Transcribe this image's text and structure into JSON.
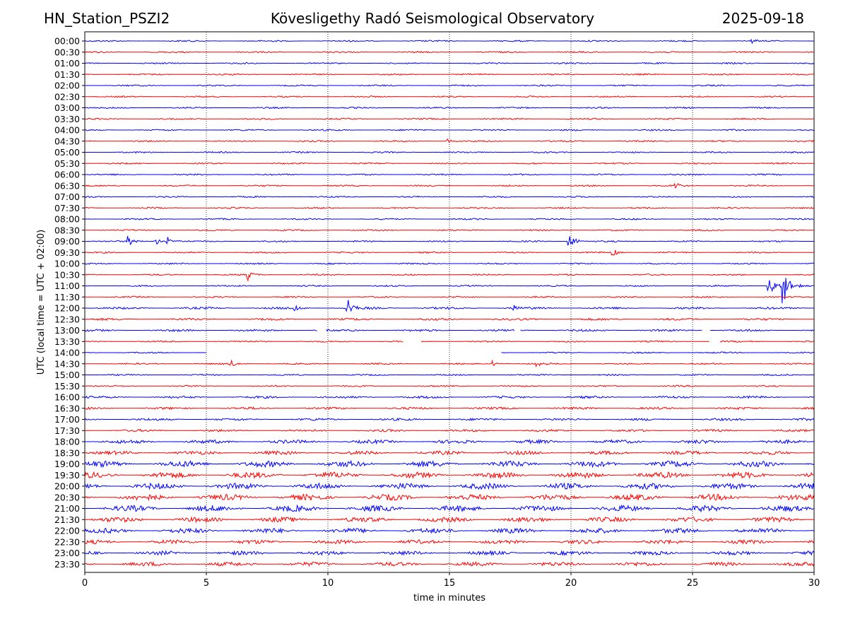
{
  "header": {
    "station": "HN_Station_PSZI2",
    "observatory": "Kövesligethy Radó Seismological Observatory",
    "date": "2025-09-18"
  },
  "chart_data": {
    "type": "line",
    "title": "Kövesligethy Radó Seismological Observatory",
    "xlabel": "time in minutes",
    "ylabel": "UTC (local time = UTC + 02:00)",
    "xlim": [
      0,
      30
    ],
    "x_ticks": [
      0,
      5,
      10,
      15,
      20,
      25,
      30
    ],
    "grid": "vertical dotted lines at 5-minute intervals",
    "colors": {
      "even_rows": "#0000ff",
      "odd_rows": "#ff0000"
    },
    "rows": [
      "00:00",
      "00:30",
      "01:00",
      "01:30",
      "02:00",
      "02:30",
      "03:00",
      "03:30",
      "04:00",
      "04:30",
      "05:00",
      "05:30",
      "06:00",
      "06:30",
      "07:00",
      "07:30",
      "08:00",
      "08:30",
      "09:00",
      "09:30",
      "10:00",
      "10:30",
      "11:00",
      "11:30",
      "12:00",
      "12:30",
      "13:00",
      "13:30",
      "14:00",
      "14:30",
      "15:00",
      "15:30",
      "16:00",
      "16:30",
      "17:00",
      "17:30",
      "18:00",
      "18:30",
      "19:00",
      "19:30",
      "20:00",
      "20:30",
      "21:00",
      "21:30",
      "22:00",
      "22:30",
      "23:00",
      "23:30"
    ],
    "events": [
      {
        "row": "00:00",
        "minute": 27.4,
        "amplitude": 0.3
      },
      {
        "row": "04:30",
        "minute": 14.9,
        "amplitude": 0.25
      },
      {
        "row": "06:30",
        "minute": 24.3,
        "amplitude": 0.35
      },
      {
        "row": "09:00",
        "minute": 1.8,
        "amplitude": 0.55
      },
      {
        "row": "09:00",
        "minute": 2.9,
        "amplitude": 0.4
      },
      {
        "row": "09:00",
        "minute": 3.4,
        "amplitude": 0.45
      },
      {
        "row": "09:00",
        "minute": 19.9,
        "amplitude": 0.9
      },
      {
        "row": "09:30",
        "minute": 21.7,
        "amplitude": 0.4
      },
      {
        "row": "10:30",
        "minute": 6.7,
        "amplitude": 0.6
      },
      {
        "row": "11:00",
        "minute": 28.1,
        "amplitude": 1.4
      },
      {
        "row": "11:00",
        "minute": 28.7,
        "amplitude": 2.2
      },
      {
        "row": "12:00",
        "minute": 10.8,
        "amplitude": 1.1
      },
      {
        "row": "12:00",
        "minute": 8.6,
        "amplitude": 0.45
      },
      {
        "row": "12:00",
        "minute": 17.6,
        "amplitude": 0.4
      },
      {
        "row": "14:30",
        "minute": 6.0,
        "amplitude": 0.4
      },
      {
        "row": "14:30",
        "minute": 16.8,
        "amplitude": 0.3
      },
      {
        "row": "14:30",
        "minute": 18.6,
        "amplitude": 0.35
      }
    ],
    "gaps": [
      {
        "row": "13:00",
        "from": 9.6,
        "to": 9.9
      },
      {
        "row": "13:00",
        "from": 17.7,
        "to": 17.9
      },
      {
        "row": "13:00",
        "from": 25.4,
        "to": 25.7
      },
      {
        "row": "13:30",
        "from": 13.1,
        "to": 13.8
      },
      {
        "row": "13:30",
        "from": 25.7,
        "to": 26.1
      },
      {
        "row": "14:00",
        "from": 5.0,
        "to": 17.1
      }
    ]
  }
}
